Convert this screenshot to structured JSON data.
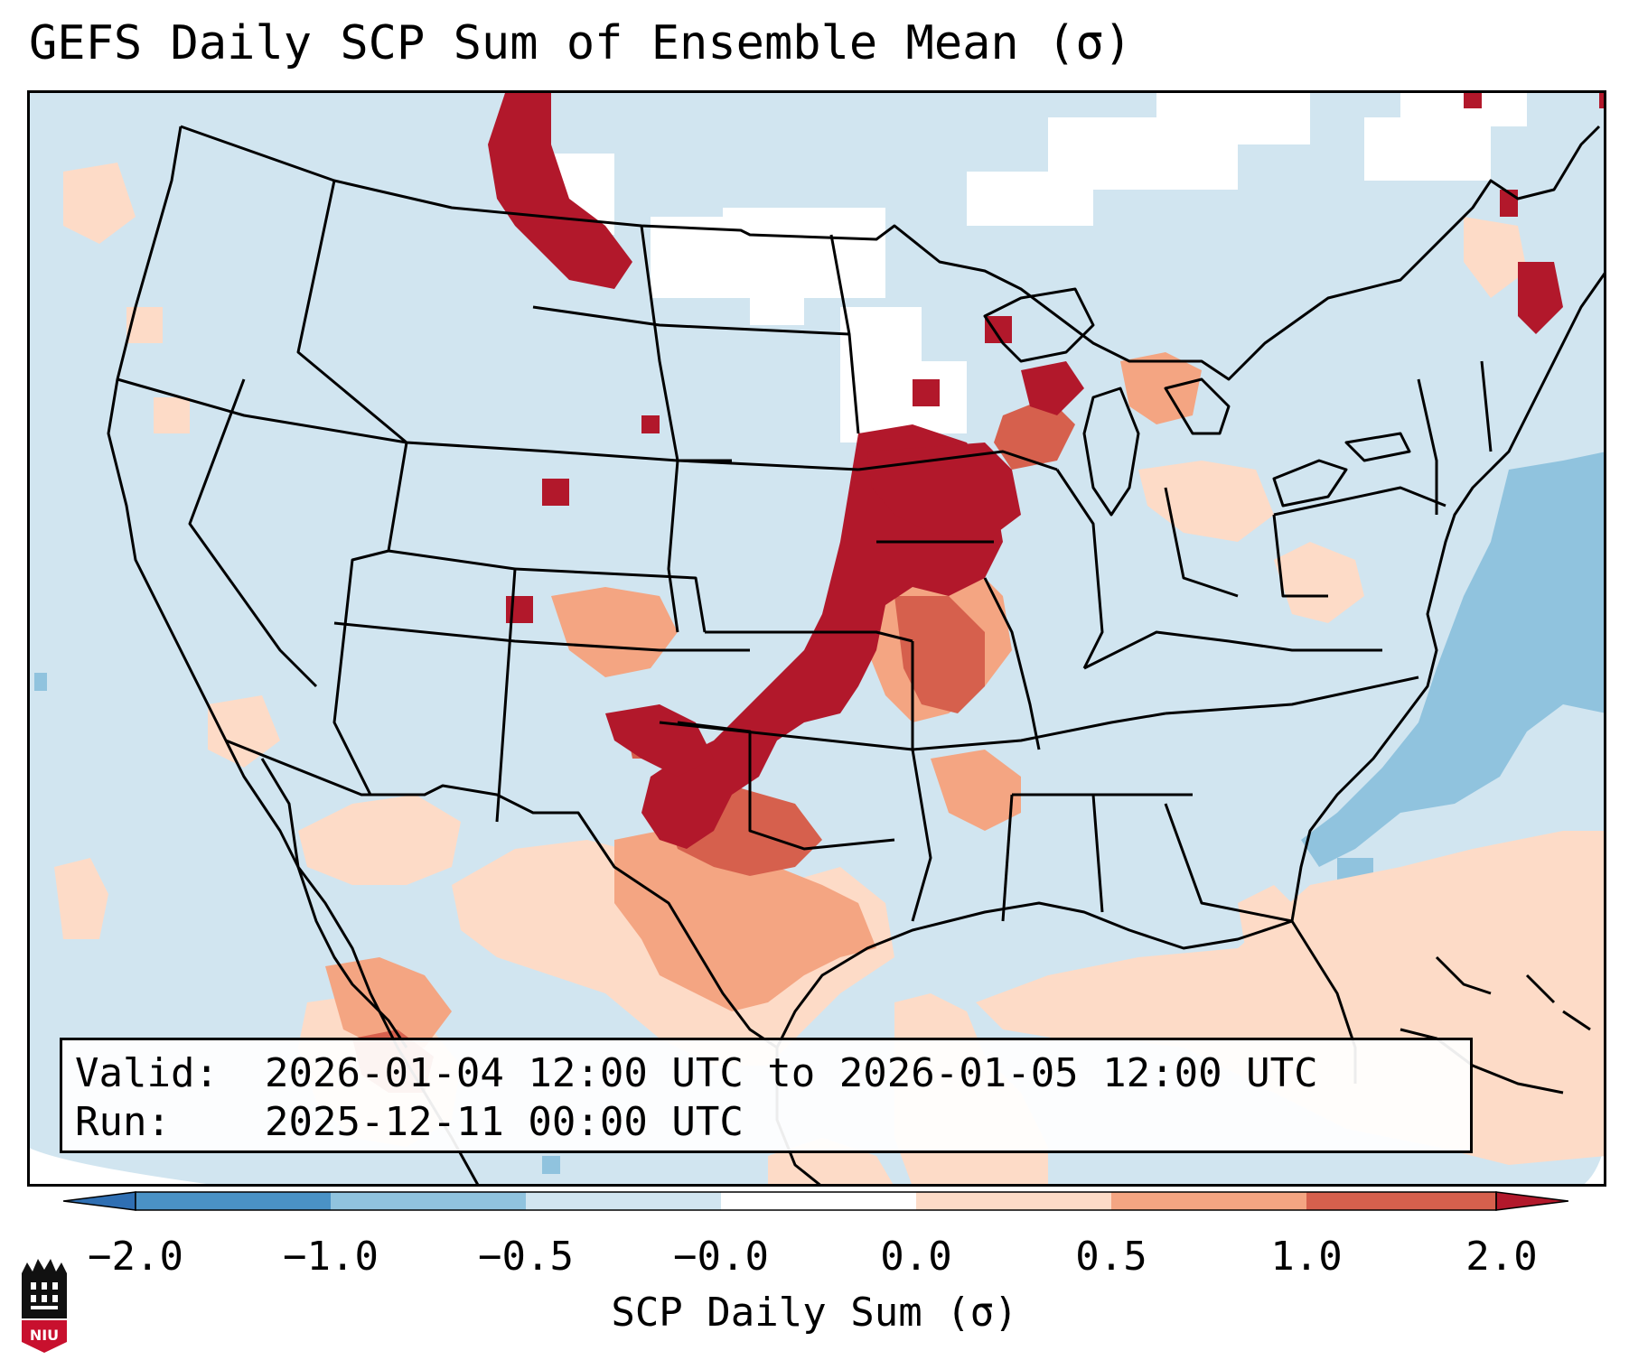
{
  "title": "GEFS Daily SCP Sum of Ensemble Mean (σ)",
  "info": {
    "valid_label": "Valid:",
    "valid_value": "2026-01-04 12:00 UTC to 2026-01-05 12:00 UTC",
    "run_label": "Run:",
    "run_value": "2025-12-11 00:00 UTC"
  },
  "colorbar": {
    "label": "SCP Daily Sum (σ)",
    "ticks": [
      "−2.0",
      "−1.0",
      "−0.5",
      "−0.0",
      "0.0",
      "0.5",
      "1.0",
      "2.0"
    ],
    "colors": {
      "extend_low": "#2f6fb3",
      "lt_neg1": "#4a92c6",
      "neg1_to_neg05": "#90c3de",
      "neg05_to_0": "#d1e5f0",
      "zero": "#ffffff",
      "zero_to_05": "#fddbc7",
      "p05_to_1": "#f4a582",
      "p1_to_2": "#d6604d",
      "extend_high": "#b2182b"
    }
  },
  "logo": {
    "text": "NIU"
  },
  "icons": {
    "logo": "niu-logo-icon"
  }
}
